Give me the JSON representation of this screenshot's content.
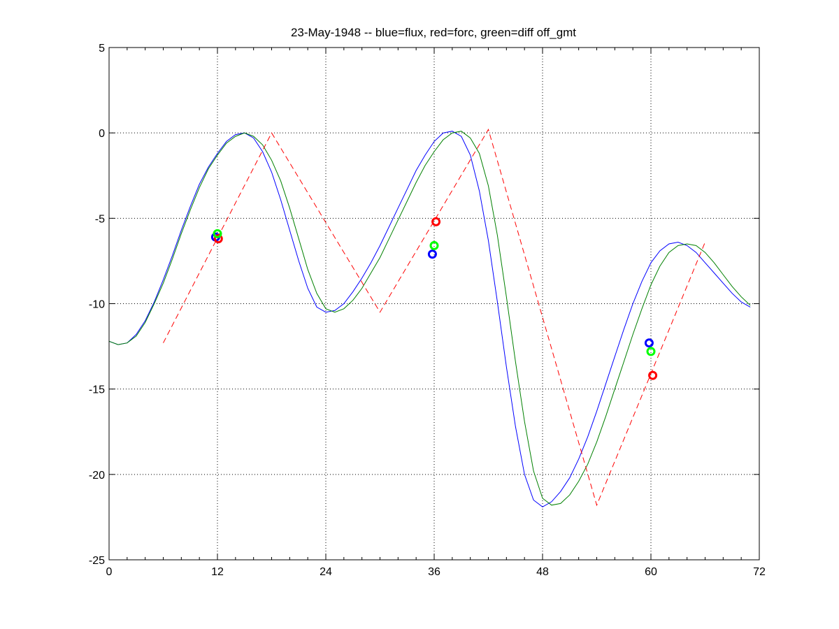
{
  "chart_data": {
    "type": "line",
    "title": "23-May-1948 -- blue=flux, red=forc, green=diff off_gmt",
    "xlabel": "",
    "ylabel": "",
    "xlim": [
      0,
      72
    ],
    "ylim": [
      -25,
      5
    ],
    "xticks": [
      0,
      12,
      24,
      36,
      48,
      60,
      72
    ],
    "yticks": [
      5,
      0,
      -5,
      -10,
      -15,
      -20,
      -25
    ],
    "grid": true,
    "colors": {
      "flux": "#0000ff",
      "forc": "#ff0000",
      "diff": "#008000",
      "marker_flux": "#0000ff",
      "marker_forc": "#ff0000",
      "marker_diff": "#00ff00"
    },
    "series": [
      {
        "key": "flux",
        "style": "solid",
        "x": [
          0,
          1,
          2,
          3,
          4,
          5,
          6,
          7,
          8,
          9,
          10,
          11,
          12,
          13,
          14,
          15,
          16,
          17,
          18,
          19,
          20,
          21,
          22,
          23,
          24,
          25,
          26,
          27,
          28,
          29,
          30,
          31,
          32,
          33,
          34,
          35,
          36,
          37,
          38,
          39,
          40,
          41,
          42,
          43,
          44,
          45,
          46,
          47,
          48,
          49,
          50,
          51,
          52,
          53,
          54,
          55,
          56,
          57,
          58,
          59,
          60,
          61,
          62,
          63,
          64,
          65,
          66,
          67,
          68,
          69,
          70,
          71
        ],
        "y": [
          -12.2,
          -12.4,
          -12.3,
          -11.8,
          -11.0,
          -9.9,
          -8.6,
          -7.2,
          -5.7,
          -4.3,
          -3.0,
          -2.0,
          -1.2,
          -0.5,
          -0.1,
          0.0,
          -0.3,
          -1.1,
          -2.3,
          -3.9,
          -5.7,
          -7.5,
          -9.1,
          -10.2,
          -10.5,
          -10.4,
          -10.0,
          -9.3,
          -8.5,
          -7.6,
          -6.6,
          -5.5,
          -4.4,
          -3.3,
          -2.2,
          -1.3,
          -0.5,
          0.0,
          0.1,
          -0.2,
          -1.3,
          -3.4,
          -6.3,
          -9.9,
          -13.7,
          -17.2,
          -20.0,
          -21.5,
          -21.9,
          -21.6,
          -21.0,
          -20.2,
          -19.1,
          -17.8,
          -16.3,
          -14.7,
          -13.1,
          -11.5,
          -10.0,
          -8.7,
          -7.6,
          -6.9,
          -6.5,
          -6.4,
          -6.6,
          -7.0,
          -7.6,
          -8.2,
          -8.8,
          -9.4,
          -9.9,
          -10.2
        ]
      },
      {
        "key": "diff",
        "style": "solid",
        "x": [
          0,
          1,
          2,
          3,
          4,
          5,
          6,
          7,
          8,
          9,
          10,
          11,
          12,
          13,
          14,
          15,
          16,
          17,
          18,
          19,
          20,
          21,
          22,
          23,
          24,
          25,
          26,
          27,
          28,
          29,
          30,
          31,
          32,
          33,
          34,
          35,
          36,
          37,
          38,
          39,
          40,
          41,
          42,
          43,
          44,
          45,
          46,
          47,
          48,
          49,
          50,
          51,
          52,
          53,
          54,
          55,
          56,
          57,
          58,
          59,
          60,
          61,
          62,
          63,
          64,
          65,
          66,
          67,
          68,
          69,
          70,
          71
        ],
        "y": [
          -12.2,
          -12.4,
          -12.3,
          -11.9,
          -11.1,
          -10.0,
          -8.8,
          -7.4,
          -5.9,
          -4.5,
          -3.2,
          -2.1,
          -1.3,
          -0.6,
          -0.2,
          0.0,
          -0.2,
          -0.7,
          -1.6,
          -2.8,
          -4.4,
          -6.2,
          -8.0,
          -9.4,
          -10.3,
          -10.5,
          -10.3,
          -9.8,
          -9.1,
          -8.2,
          -7.3,
          -6.2,
          -5.1,
          -4.0,
          -2.9,
          -1.9,
          -1.1,
          -0.4,
          0.0,
          0.1,
          -0.3,
          -1.2,
          -3.1,
          -6.0,
          -9.6,
          -13.4,
          -16.9,
          -19.8,
          -21.4,
          -21.8,
          -21.7,
          -21.2,
          -20.4,
          -19.4,
          -18.1,
          -16.6,
          -15.0,
          -13.4,
          -11.8,
          -10.3,
          -8.9,
          -7.8,
          -7.0,
          -6.6,
          -6.5,
          -6.6,
          -7.0,
          -7.6,
          -8.3,
          -9.0,
          -9.6,
          -10.1
        ]
      },
      {
        "key": "forc",
        "style": "dashed",
        "x": [
          6,
          18,
          30,
          42,
          54,
          66
        ],
        "y": [
          -12.3,
          0.0,
          -10.5,
          0.2,
          -21.8,
          -6.4
        ]
      }
    ],
    "markers": [
      {
        "key": "marker_flux",
        "x": 11.8,
        "y": -6.1
      },
      {
        "key": "marker_forc",
        "x": 12.1,
        "y": -6.2
      },
      {
        "key": "marker_diff",
        "x": 12.0,
        "y": -5.9
      },
      {
        "key": "marker_flux",
        "x": 35.8,
        "y": -7.1
      },
      {
        "key": "marker_forc",
        "x": 36.2,
        "y": -5.2
      },
      {
        "key": "marker_diff",
        "x": 36.0,
        "y": -6.6
      },
      {
        "key": "marker_flux",
        "x": 59.8,
        "y": -12.3
      },
      {
        "key": "marker_forc",
        "x": 60.2,
        "y": -14.2
      },
      {
        "key": "marker_diff",
        "x": 60.0,
        "y": -12.8
      }
    ]
  }
}
